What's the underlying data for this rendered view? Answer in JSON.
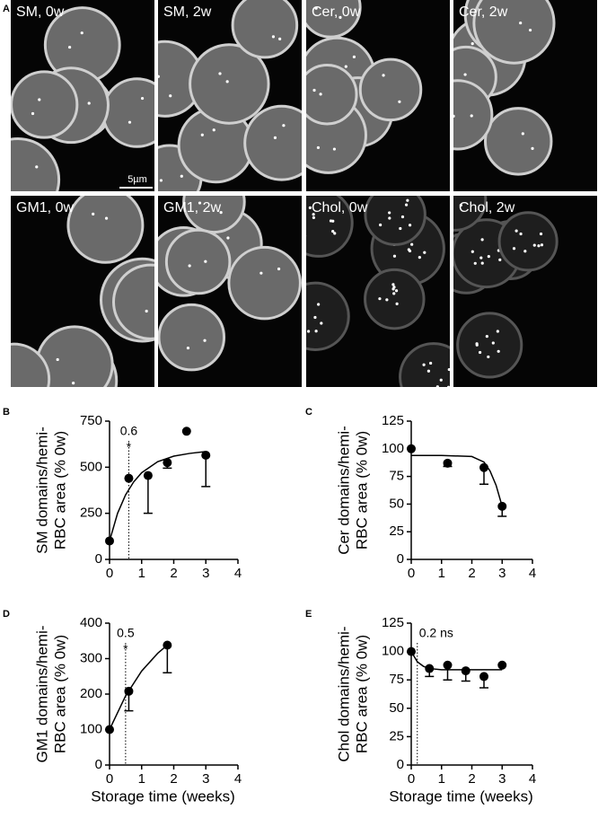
{
  "figure": {
    "panel_labels": [
      "A"
    ],
    "scale_bar": "5µm",
    "micrographs": [
      {
        "label": "SM, 0w"
      },
      {
        "label": "SM, 2w"
      },
      {
        "label": "Cer, 0w"
      },
      {
        "label": "Cer, 2w"
      },
      {
        "label": "GM1, 0w"
      },
      {
        "label": "GM1, 2w"
      },
      {
        "label": "Chol, 0w"
      },
      {
        "label": "Chol, 2w"
      }
    ]
  },
  "chart_data": [
    {
      "type": "scatter",
      "panel": "B",
      "y_label": [
        "SM domains/hemi-",
        "RBC area (% 0w)"
      ],
      "x": [
        0,
        0.6,
        1.2,
        1.8,
        2.4,
        3
      ],
      "values": [
        100,
        440,
        455,
        525,
        695,
        565
      ],
      "errors": [
        null,
        null,
        205,
        30,
        null,
        170
      ],
      "fit": {
        "x": [
          0,
          0.25,
          0.5,
          0.75,
          1,
          1.5,
          2,
          2.5,
          3
        ],
        "values": [
          100,
          250,
          350,
          420,
          470,
          530,
          560,
          575,
          585
        ]
      },
      "annotation": {
        "x": 0.6,
        "text": "0.6",
        "star": "*"
      },
      "xlim": [
        0,
        4
      ],
      "xticks": [
        0,
        1,
        2,
        3,
        4
      ],
      "ylim": [
        0,
        750
      ],
      "yticks": [
        0,
        250,
        500,
        750
      ]
    },
    {
      "type": "scatter",
      "panel": "C",
      "y_label": [
        "Cer domains/hemi-",
        "RBC area (% 0w)"
      ],
      "x": [
        0,
        1.2,
        2.4,
        3
      ],
      "values": [
        100,
        87,
        83,
        48
      ],
      "errors": [
        null,
        3,
        15,
        9
      ],
      "fit": {
        "x": [
          0,
          1,
          2,
          2.4,
          2.6,
          2.8,
          3
        ],
        "values": [
          94,
          94,
          93,
          88,
          80,
          67,
          48
        ]
      },
      "xlim": [
        0,
        4
      ],
      "xticks": [
        0,
        1,
        2,
        3,
        4
      ],
      "ylim": [
        0,
        125
      ],
      "yticks": [
        0,
        25,
        50,
        75,
        100,
        125
      ]
    },
    {
      "type": "scatter",
      "panel": "D",
      "y_label": [
        "GM1 domains/hemi-",
        "RBC area (% 0w)"
      ],
      "x_label": "Storage time (weeks)",
      "x": [
        0,
        0.6,
        1.8
      ],
      "values": [
        100,
        208,
        338
      ],
      "errors": [
        null,
        55,
        78
      ],
      "fit": {
        "x": [
          0,
          0.5,
          1,
          1.5,
          1.8
        ],
        "values": [
          100,
          195,
          265,
          315,
          338
        ]
      },
      "annotation": {
        "x": 0.5,
        "text": "0.5",
        "star": "*"
      },
      "xlim": [
        0,
        4
      ],
      "xticks": [
        0,
        1,
        2,
        3,
        4
      ],
      "ylim": [
        0,
        400
      ],
      "yticks": [
        0,
        100,
        200,
        300,
        400
      ]
    },
    {
      "type": "scatter",
      "panel": "E",
      "y_label": [
        "Chol domains/hemi-",
        "RBC area (% 0w)"
      ],
      "x_label": "Storage time (weeks)",
      "x": [
        0,
        0.6,
        1.2,
        1.8,
        2.4,
        3
      ],
      "values": [
        100,
        85,
        88,
        83,
        78,
        88
      ],
      "errors": [
        null,
        7,
        13,
        9,
        10,
        null
      ],
      "fit": {
        "x": [
          0,
          0.2,
          0.4,
          0.6,
          1,
          2,
          3
        ],
        "values": [
          100,
          91,
          87,
          85,
          84,
          84,
          84
        ]
      },
      "annotation": {
        "x": 0.2,
        "text": "0.2 ns"
      },
      "xlim": [
        0,
        4
      ],
      "xticks": [
        0,
        1,
        2,
        3,
        4
      ],
      "ylim": [
        0,
        125
      ],
      "yticks": [
        0,
        25,
        50,
        75,
        100,
        125
      ]
    }
  ]
}
